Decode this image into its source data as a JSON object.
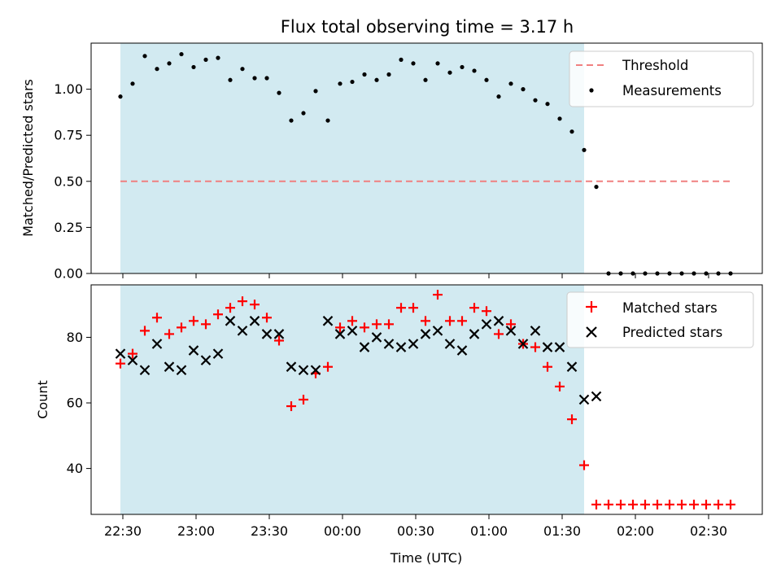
{
  "chart_data": [
    {
      "type": "scatter",
      "title": "Flux total observing time = 3.17 h",
      "ylabel": "Matched/Predicted stars",
      "ylim": [
        0,
        1.25
      ],
      "yticks": [
        "0.00",
        "0.25",
        "0.50",
        "0.75",
        "1.00"
      ],
      "yticks_values": [
        0,
        0.25,
        0.5,
        0.75,
        1.0
      ],
      "xlim_minutes": [
        -13,
        262
      ],
      "shaded_region": {
        "start": "22:29",
        "end": "01:39",
        "color": "#add8e6"
      },
      "grid": false,
      "legend": "top-right",
      "threshold": {
        "name": "Threshold",
        "value": 0.5,
        "color": "#f08080",
        "x_start": "22:29",
        "x_end": "02:39"
      },
      "series": [
        {
          "name": "Measurements",
          "color": "#000000",
          "marker": "dot",
          "points": [
            [
              "22:29",
              0.96
            ],
            [
              "22:34",
              1.03
            ],
            [
              "22:39",
              1.18
            ],
            [
              "22:44",
              1.11
            ],
            [
              "22:49",
              1.14
            ],
            [
              "22:54",
              1.19
            ],
            [
              "22:59",
              1.12
            ],
            [
              "23:04",
              1.16
            ],
            [
              "23:09",
              1.17
            ],
            [
              "23:14",
              1.05
            ],
            [
              "23:19",
              1.11
            ],
            [
              "23:24",
              1.06
            ],
            [
              "23:29",
              1.06
            ],
            [
              "23:34",
              0.98
            ],
            [
              "23:39",
              0.83
            ],
            [
              "23:44",
              0.87
            ],
            [
              "23:49",
              0.99
            ],
            [
              "23:54",
              0.83
            ],
            [
              "23:59",
              1.03
            ],
            [
              "00:04",
              1.04
            ],
            [
              "00:09",
              1.08
            ],
            [
              "00:14",
              1.05
            ],
            [
              "00:19",
              1.08
            ],
            [
              "00:24",
              1.16
            ],
            [
              "00:29",
              1.14
            ],
            [
              "00:34",
              1.05
            ],
            [
              "00:39",
              1.14
            ],
            [
              "00:44",
              1.09
            ],
            [
              "00:49",
              1.12
            ],
            [
              "00:54",
              1.1
            ],
            [
              "00:59",
              1.05
            ],
            [
              "01:04",
              0.96
            ],
            [
              "01:09",
              1.03
            ],
            [
              "01:14",
              1.0
            ],
            [
              "01:19",
              0.94
            ],
            [
              "01:24",
              0.92
            ],
            [
              "01:29",
              0.84
            ],
            [
              "01:34",
              0.77
            ],
            [
              "01:39",
              0.67
            ],
            [
              "01:44",
              0.47
            ],
            [
              "01:49",
              0
            ],
            [
              "01:54",
              0
            ],
            [
              "01:59",
              0
            ],
            [
              "02:04",
              0
            ],
            [
              "02:09",
              0
            ],
            [
              "02:14",
              0
            ],
            [
              "02:19",
              0
            ],
            [
              "02:24",
              0
            ],
            [
              "02:29",
              0
            ],
            [
              "02:34",
              0
            ],
            [
              "02:39",
              0
            ]
          ]
        }
      ]
    },
    {
      "type": "scatter",
      "xlabel": "Time (UTC)",
      "ylabel": "Count",
      "ylim": [
        26,
        96
      ],
      "yticks": [
        "40",
        "60",
        "80"
      ],
      "yticks_values": [
        40,
        60,
        80
      ],
      "xticks": [
        "22:30",
        "23:00",
        "23:30",
        "00:00",
        "00:30",
        "01:00",
        "01:30",
        "02:00",
        "02:30"
      ],
      "xticks_minutes": [
        0,
        30,
        60,
        90,
        120,
        150,
        180,
        210,
        240
      ],
      "xlim_minutes": [
        -13,
        262
      ],
      "shaded_region": {
        "start": "22:29",
        "end": "01:39",
        "color": "#add8e6"
      },
      "grid": false,
      "legend": "top-right",
      "series": [
        {
          "name": "Matched stars",
          "color": "#ff0000",
          "marker": "plus",
          "points": [
            [
              "22:29",
              72
            ],
            [
              "22:34",
              75
            ],
            [
              "22:39",
              82
            ],
            [
              "22:44",
              86
            ],
            [
              "22:49",
              81
            ],
            [
              "22:54",
              83
            ],
            [
              "22:59",
              85
            ],
            [
              "23:04",
              84
            ],
            [
              "23:09",
              87
            ],
            [
              "23:14",
              89
            ],
            [
              "23:19",
              91
            ],
            [
              "23:24",
              90
            ],
            [
              "23:29",
              86
            ],
            [
              "23:34",
              79
            ],
            [
              "23:39",
              59
            ],
            [
              "23:44",
              61
            ],
            [
              "23:49",
              69
            ],
            [
              "23:54",
              71
            ],
            [
              "23:59",
              83
            ],
            [
              "00:04",
              85
            ],
            [
              "00:09",
              83
            ],
            [
              "00:14",
              84
            ],
            [
              "00:19",
              84
            ],
            [
              "00:24",
              89
            ],
            [
              "00:29",
              89
            ],
            [
              "00:34",
              85
            ],
            [
              "00:39",
              93
            ],
            [
              "00:44",
              85
            ],
            [
              "00:49",
              85
            ],
            [
              "00:54",
              89
            ],
            [
              "00:59",
              88
            ],
            [
              "01:04",
              81
            ],
            [
              "01:09",
              84
            ],
            [
              "01:14",
              78
            ],
            [
              "01:19",
              77
            ],
            [
              "01:24",
              71
            ],
            [
              "01:29",
              65
            ],
            [
              "01:34",
              55
            ],
            [
              "01:39",
              41
            ],
            [
              "01:44",
              29
            ],
            [
              "01:49",
              29
            ],
            [
              "01:54",
              29
            ],
            [
              "01:59",
              29
            ],
            [
              "02:04",
              29
            ],
            [
              "02:09",
              29
            ],
            [
              "02:14",
              29
            ],
            [
              "02:19",
              29
            ],
            [
              "02:24",
              29
            ],
            [
              "02:29",
              29
            ],
            [
              "02:34",
              29
            ],
            [
              "02:39",
              29
            ]
          ]
        },
        {
          "name": "Predicted stars",
          "color": "#000000",
          "marker": "x",
          "points": [
            [
              "22:29",
              75
            ],
            [
              "22:34",
              73
            ],
            [
              "22:39",
              70
            ],
            [
              "22:44",
              78
            ],
            [
              "22:49",
              71
            ],
            [
              "22:54",
              70
            ],
            [
              "22:59",
              76
            ],
            [
              "23:04",
              73
            ],
            [
              "23:09",
              75
            ],
            [
              "23:14",
              85
            ],
            [
              "23:19",
              82
            ],
            [
              "23:24",
              85
            ],
            [
              "23:29",
              81
            ],
            [
              "23:34",
              81
            ],
            [
              "23:39",
              71
            ],
            [
              "23:44",
              70
            ],
            [
              "23:49",
              70
            ],
            [
              "23:54",
              85
            ],
            [
              "23:59",
              81
            ],
            [
              "00:04",
              82
            ],
            [
              "00:09",
              77
            ],
            [
              "00:14",
              80
            ],
            [
              "00:19",
              78
            ],
            [
              "00:24",
              77
            ],
            [
              "00:29",
              78
            ],
            [
              "00:34",
              81
            ],
            [
              "00:39",
              82
            ],
            [
              "00:44",
              78
            ],
            [
              "00:49",
              76
            ],
            [
              "00:54",
              81
            ],
            [
              "00:59",
              84
            ],
            [
              "01:04",
              85
            ],
            [
              "01:09",
              82
            ],
            [
              "01:14",
              78
            ],
            [
              "01:19",
              82
            ],
            [
              "01:24",
              77
            ],
            [
              "01:29",
              77
            ],
            [
              "01:34",
              71
            ],
            [
              "01:39",
              61
            ],
            [
              "01:44",
              62
            ]
          ]
        }
      ]
    }
  ]
}
